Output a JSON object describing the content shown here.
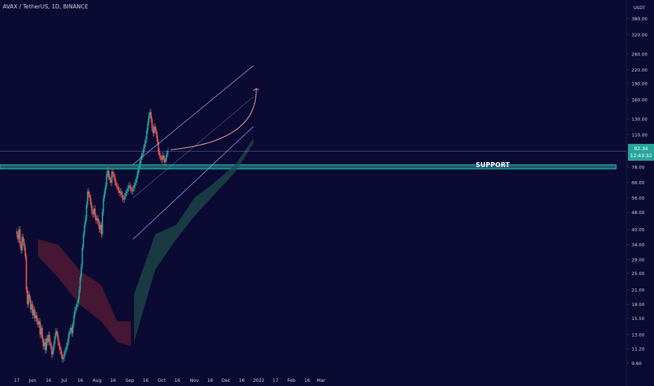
{
  "header": {
    "title": "AVAX / TetherUS, 1D, BINANCE",
    "unit": "USDT"
  },
  "price_badge": {
    "price": "92.34",
    "countdown": "12:43:32"
  },
  "annotations": {
    "support_label": "SUPPORT"
  },
  "colors": {
    "background": "#0b0a33",
    "up_candle": "#26a69a",
    "down_candle": "#ef5350",
    "channel_line": "#8fa8ff",
    "support_zone": "#26a69a",
    "cloud_bull": "#1f4a4a",
    "cloud_bear": "#5a1c33",
    "arrow": "#f4a0a0"
  },
  "chart_data": {
    "type": "candlestick",
    "title": "AVAX / TetherUS, 1D, BINANCE",
    "scale": "log",
    "ylim": [
      8.6,
      430
    ],
    "y_ticks": [
      "380.00",
      "320.00",
      "260.00",
      "220.00",
      "190.00",
      "160.00",
      "130.00",
      "110.00",
      "92.34",
      "78.00",
      "66.00",
      "56.00",
      "48.00",
      "40.00",
      "34.00",
      "29.00",
      "25.00",
      "21.00",
      "18.00",
      "15.50",
      "13.00",
      "11.20",
      "9.60"
    ],
    "x_ticks": [
      "17",
      "Jun",
      "16",
      "Jul",
      "16",
      "Aug",
      "16",
      "Sep",
      "16",
      "Oct",
      "16",
      "Nov",
      "16",
      "Dec",
      "16",
      "2022",
      "17",
      "Feb",
      "16",
      "Mar"
    ],
    "last_price": 92.34,
    "support_level": 78.0,
    "channel": {
      "start_date": "2021-09-04",
      "end_date": "2021-12-27",
      "upper": [
        80,
        230
      ],
      "middle": [
        56,
        165
      ],
      "lower": [
        36,
        120
      ]
    },
    "projection_target": 180,
    "ichimoku": {
      "bearish_cloud": [
        "May-Aug 2021"
      ],
      "bullish_cloud": [
        "Aug-Dec 2021"
      ]
    },
    "series": [
      {
        "x": "2021-05-17",
        "close": [
          38,
          36,
          40,
          34,
          32,
          37,
          35,
          33,
          30,
          21,
          18,
          20,
          19,
          17,
          18,
          16,
          17,
          15.5,
          16,
          15,
          14.5,
          15,
          13,
          14,
          12.5,
          11.5,
          12,
          11,
          12.5,
          12,
          13,
          12,
          11.5,
          10.5,
          11,
          11.8,
          12.8,
          13.5,
          13,
          12,
          11.5,
          11,
          10.5,
          10,
          10.2,
          10.8,
          11,
          11.5,
          12,
          13,
          13.5,
          14,
          13.2,
          14.5,
          16,
          17,
          17.5,
          18,
          19,
          21,
          24,
          27,
          33,
          38,
          42,
          45,
          52,
          60,
          58,
          56,
          52,
          48,
          47,
          50,
          46,
          44,
          45,
          43,
          40,
          42,
          38,
          48,
          56,
          60,
          64,
          72,
          75,
          70,
          68,
          66,
          74,
          72,
          70,
          66,
          64,
          63,
          61,
          59,
          60,
          58,
          56,
          55,
          57,
          59,
          60,
          62,
          64,
          63,
          61,
          60,
          62,
          64,
          66,
          68,
          72,
          76,
          80,
          84,
          88,
          90,
          95,
          100,
          105,
          115,
          125,
          135,
          140,
          130,
          118,
          112,
          120,
          116,
          110,
          102,
          92,
          88,
          86,
          84,
          88,
          85,
          82,
          86,
          90,
          92.34
        ]
      }
    ]
  }
}
